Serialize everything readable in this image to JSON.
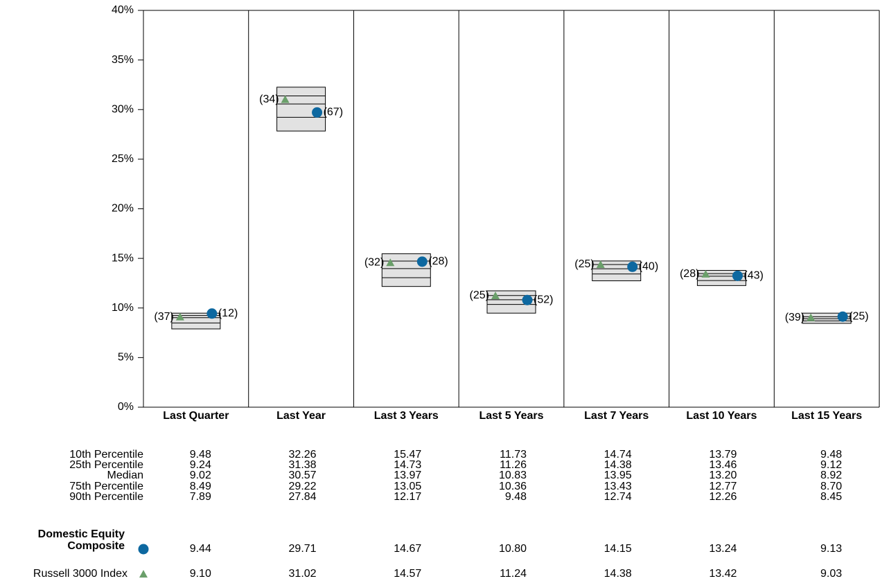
{
  "chart_data": {
    "type": "box",
    "ylim": [
      0,
      40
    ],
    "yticks": [
      {
        "value": 0,
        "label": "0%"
      },
      {
        "value": 5,
        "label": "5%"
      },
      {
        "value": 10,
        "label": "10%"
      },
      {
        "value": 15,
        "label": "15%"
      },
      {
        "value": 20,
        "label": "20%"
      },
      {
        "value": 25,
        "label": "25%"
      },
      {
        "value": 30,
        "label": "30%"
      },
      {
        "value": 35,
        "label": "35%"
      },
      {
        "value": 40,
        "label": "40%"
      }
    ],
    "categories": [
      "Last Quarter",
      "Last Year",
      "Last 3 Years",
      "Last 5 Years",
      "Last 7 Years",
      "Last 10 Years",
      "Last 15 Years"
    ],
    "box_color": "#e2e2e2",
    "percentiles": [
      {
        "name": "10th Percentile",
        "values": [
          9.48,
          32.26,
          15.47,
          11.73,
          14.74,
          13.79,
          9.48
        ],
        "value_labels": [
          "9.48",
          "32.26",
          "15.47",
          "11.73",
          "14.74",
          "13.79",
          "9.48"
        ]
      },
      {
        "name": "25th Percentile",
        "values": [
          9.24,
          31.38,
          14.73,
          11.26,
          14.38,
          13.46,
          9.12
        ],
        "value_labels": [
          "9.24",
          "31.38",
          "14.73",
          "11.26",
          "14.38",
          "13.46",
          "9.12"
        ]
      },
      {
        "name": "Median",
        "values": [
          9.02,
          30.57,
          13.97,
          10.83,
          13.95,
          13.2,
          8.92
        ],
        "value_labels": [
          "9.02",
          "30.57",
          "13.97",
          "10.83",
          "13.95",
          "13.20",
          "8.92"
        ]
      },
      {
        "name": "75th Percentile",
        "values": [
          8.49,
          29.22,
          13.05,
          10.36,
          13.43,
          12.77,
          8.7
        ],
        "value_labels": [
          "8.49",
          "29.22",
          "13.05",
          "10.36",
          "13.43",
          "12.77",
          "8.70"
        ]
      },
      {
        "name": "90th Percentile",
        "values": [
          7.89,
          27.84,
          12.17,
          9.48,
          12.74,
          12.26,
          8.45
        ],
        "value_labels": [
          "7.89",
          "27.84",
          "12.17",
          "9.48",
          "12.74",
          "12.26",
          "8.45"
        ]
      }
    ],
    "series": [
      {
        "name": "Domestic Equity Composite",
        "color": "#0d68a0",
        "marker": "circle",
        "values": [
          9.44,
          29.71,
          14.67,
          10.8,
          14.15,
          13.24,
          9.13
        ],
        "value_labels": [
          "9.44",
          "29.71",
          "14.67",
          "10.80",
          "14.15",
          "13.24",
          "9.13"
        ],
        "ranks": [
          12,
          67,
          28,
          52,
          40,
          43,
          25
        ],
        "rank_labels": [
          "(12)",
          "(67)",
          "(28)",
          "(52)",
          "(40)",
          "(43)",
          "(25)"
        ]
      },
      {
        "name": "Russell 3000 Index",
        "color": "#6a9f6a",
        "marker": "triangle",
        "values": [
          9.1,
          31.02,
          14.57,
          11.24,
          14.38,
          13.42,
          9.03
        ],
        "value_labels": [
          "9.10",
          "31.02",
          "14.57",
          "11.24",
          "14.38",
          "13.42",
          "9.03"
        ],
        "ranks": [
          37,
          34,
          32,
          25,
          25,
          28,
          39
        ],
        "rank_labels": [
          "(37)",
          "(34)",
          "(32)",
          "(25)",
          "(25)",
          "(28)",
          "(39)"
        ]
      }
    ]
  }
}
